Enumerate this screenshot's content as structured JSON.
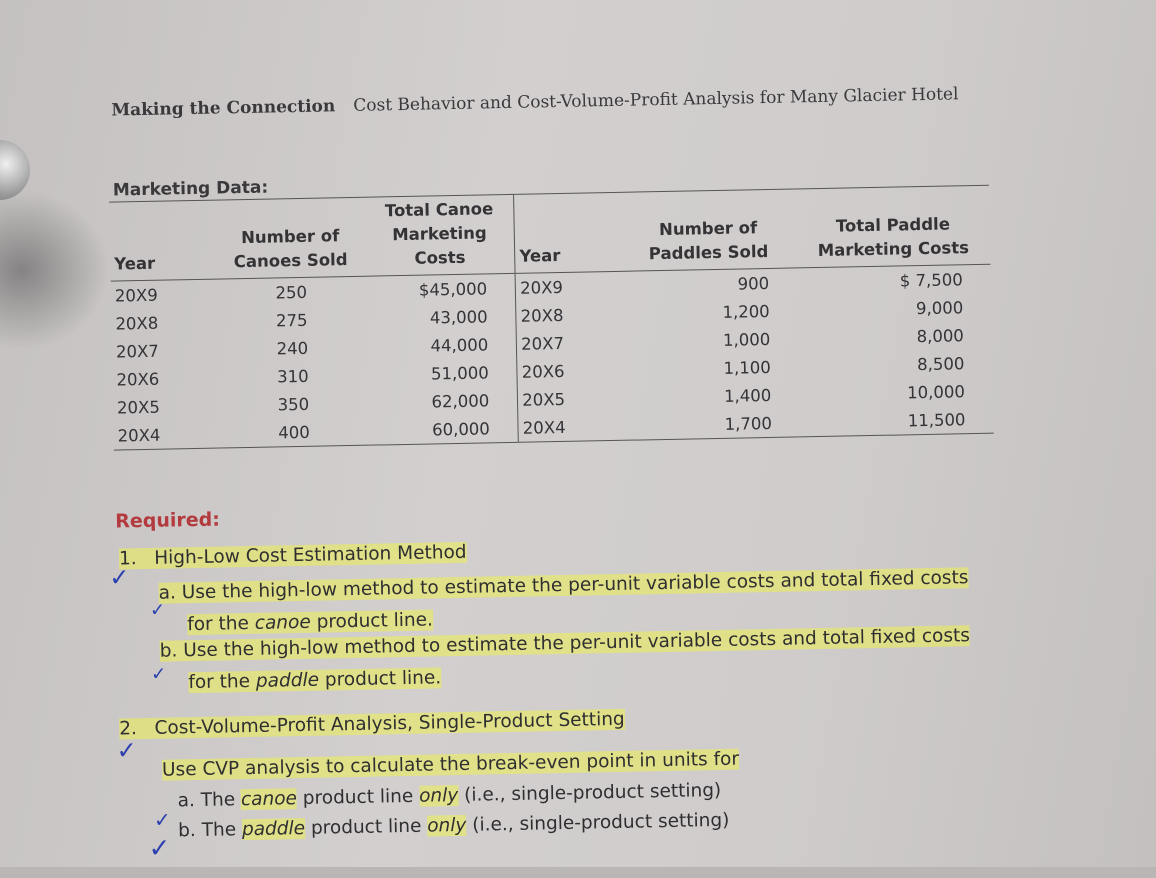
{
  "header": {
    "lead": "Making the Connection",
    "title": "Cost Behavior and Cost-Volume-Profit Analysis for Many Glacier Hotel"
  },
  "marketing_label": "Marketing Data:",
  "table": {
    "headers": [
      "Year",
      "Number of Canoes Sold",
      "Total Canoe Marketing Costs",
      "Year",
      "Number of Paddles Sold",
      "Total Paddle Marketing Costs"
    ],
    "rows": [
      [
        "20X9",
        "250",
        "$45,000",
        "20X9",
        "900",
        "$ 7,500"
      ],
      [
        "20X8",
        "275",
        "43,000",
        "20X8",
        "1,200",
        "9,000"
      ],
      [
        "20X7",
        "240",
        "44,000",
        "20X7",
        "1,000",
        "8,000"
      ],
      [
        "20X6",
        "310",
        "51,000",
        "20X6",
        "1,100",
        "8,500"
      ],
      [
        "20X5",
        "350",
        "62,000",
        "20X5",
        "1,400",
        "10,000"
      ],
      [
        "20X4",
        "400",
        "60,000",
        "20X4",
        "1,700",
        "11,500"
      ]
    ]
  },
  "required": {
    "label": "Required:",
    "q1": {
      "num": "1.",
      "title": "High-Low Cost Estimation Method",
      "a": {
        "marker": "a.",
        "line1": "Use the high-low method to estimate the per-unit variable costs and total fixed costs",
        "pre": "for the ",
        "em": "canoe",
        "post": " product line."
      },
      "b": {
        "marker": "b.",
        "line1": "Use the high-low method to estimate the per-unit variable costs and total fixed costs",
        "pre": "for the ",
        "em": "paddle",
        "post": " product line."
      }
    },
    "q2": {
      "num": "2.",
      "title": "Cost-Volume-Profit Analysis, Single-Product Setting",
      "intro": "Use CVP analysis to calculate the break-even point in units for",
      "a": {
        "marker": "a.",
        "pre": "The ",
        "em1": "canoe",
        "mid": " product line ",
        "em2": "only",
        "post": " (i.e., single-product setting)"
      },
      "b": {
        "marker": "b.",
        "pre": "The ",
        "em1": "paddle",
        "mid": " product line ",
        "em2": "only",
        "post": " (i.e., single-product setting)"
      }
    }
  },
  "colors": {
    "required_heading": "#b33a3e",
    "highlighter": "#ecf050",
    "pen_checks": "#2a3fb0"
  }
}
